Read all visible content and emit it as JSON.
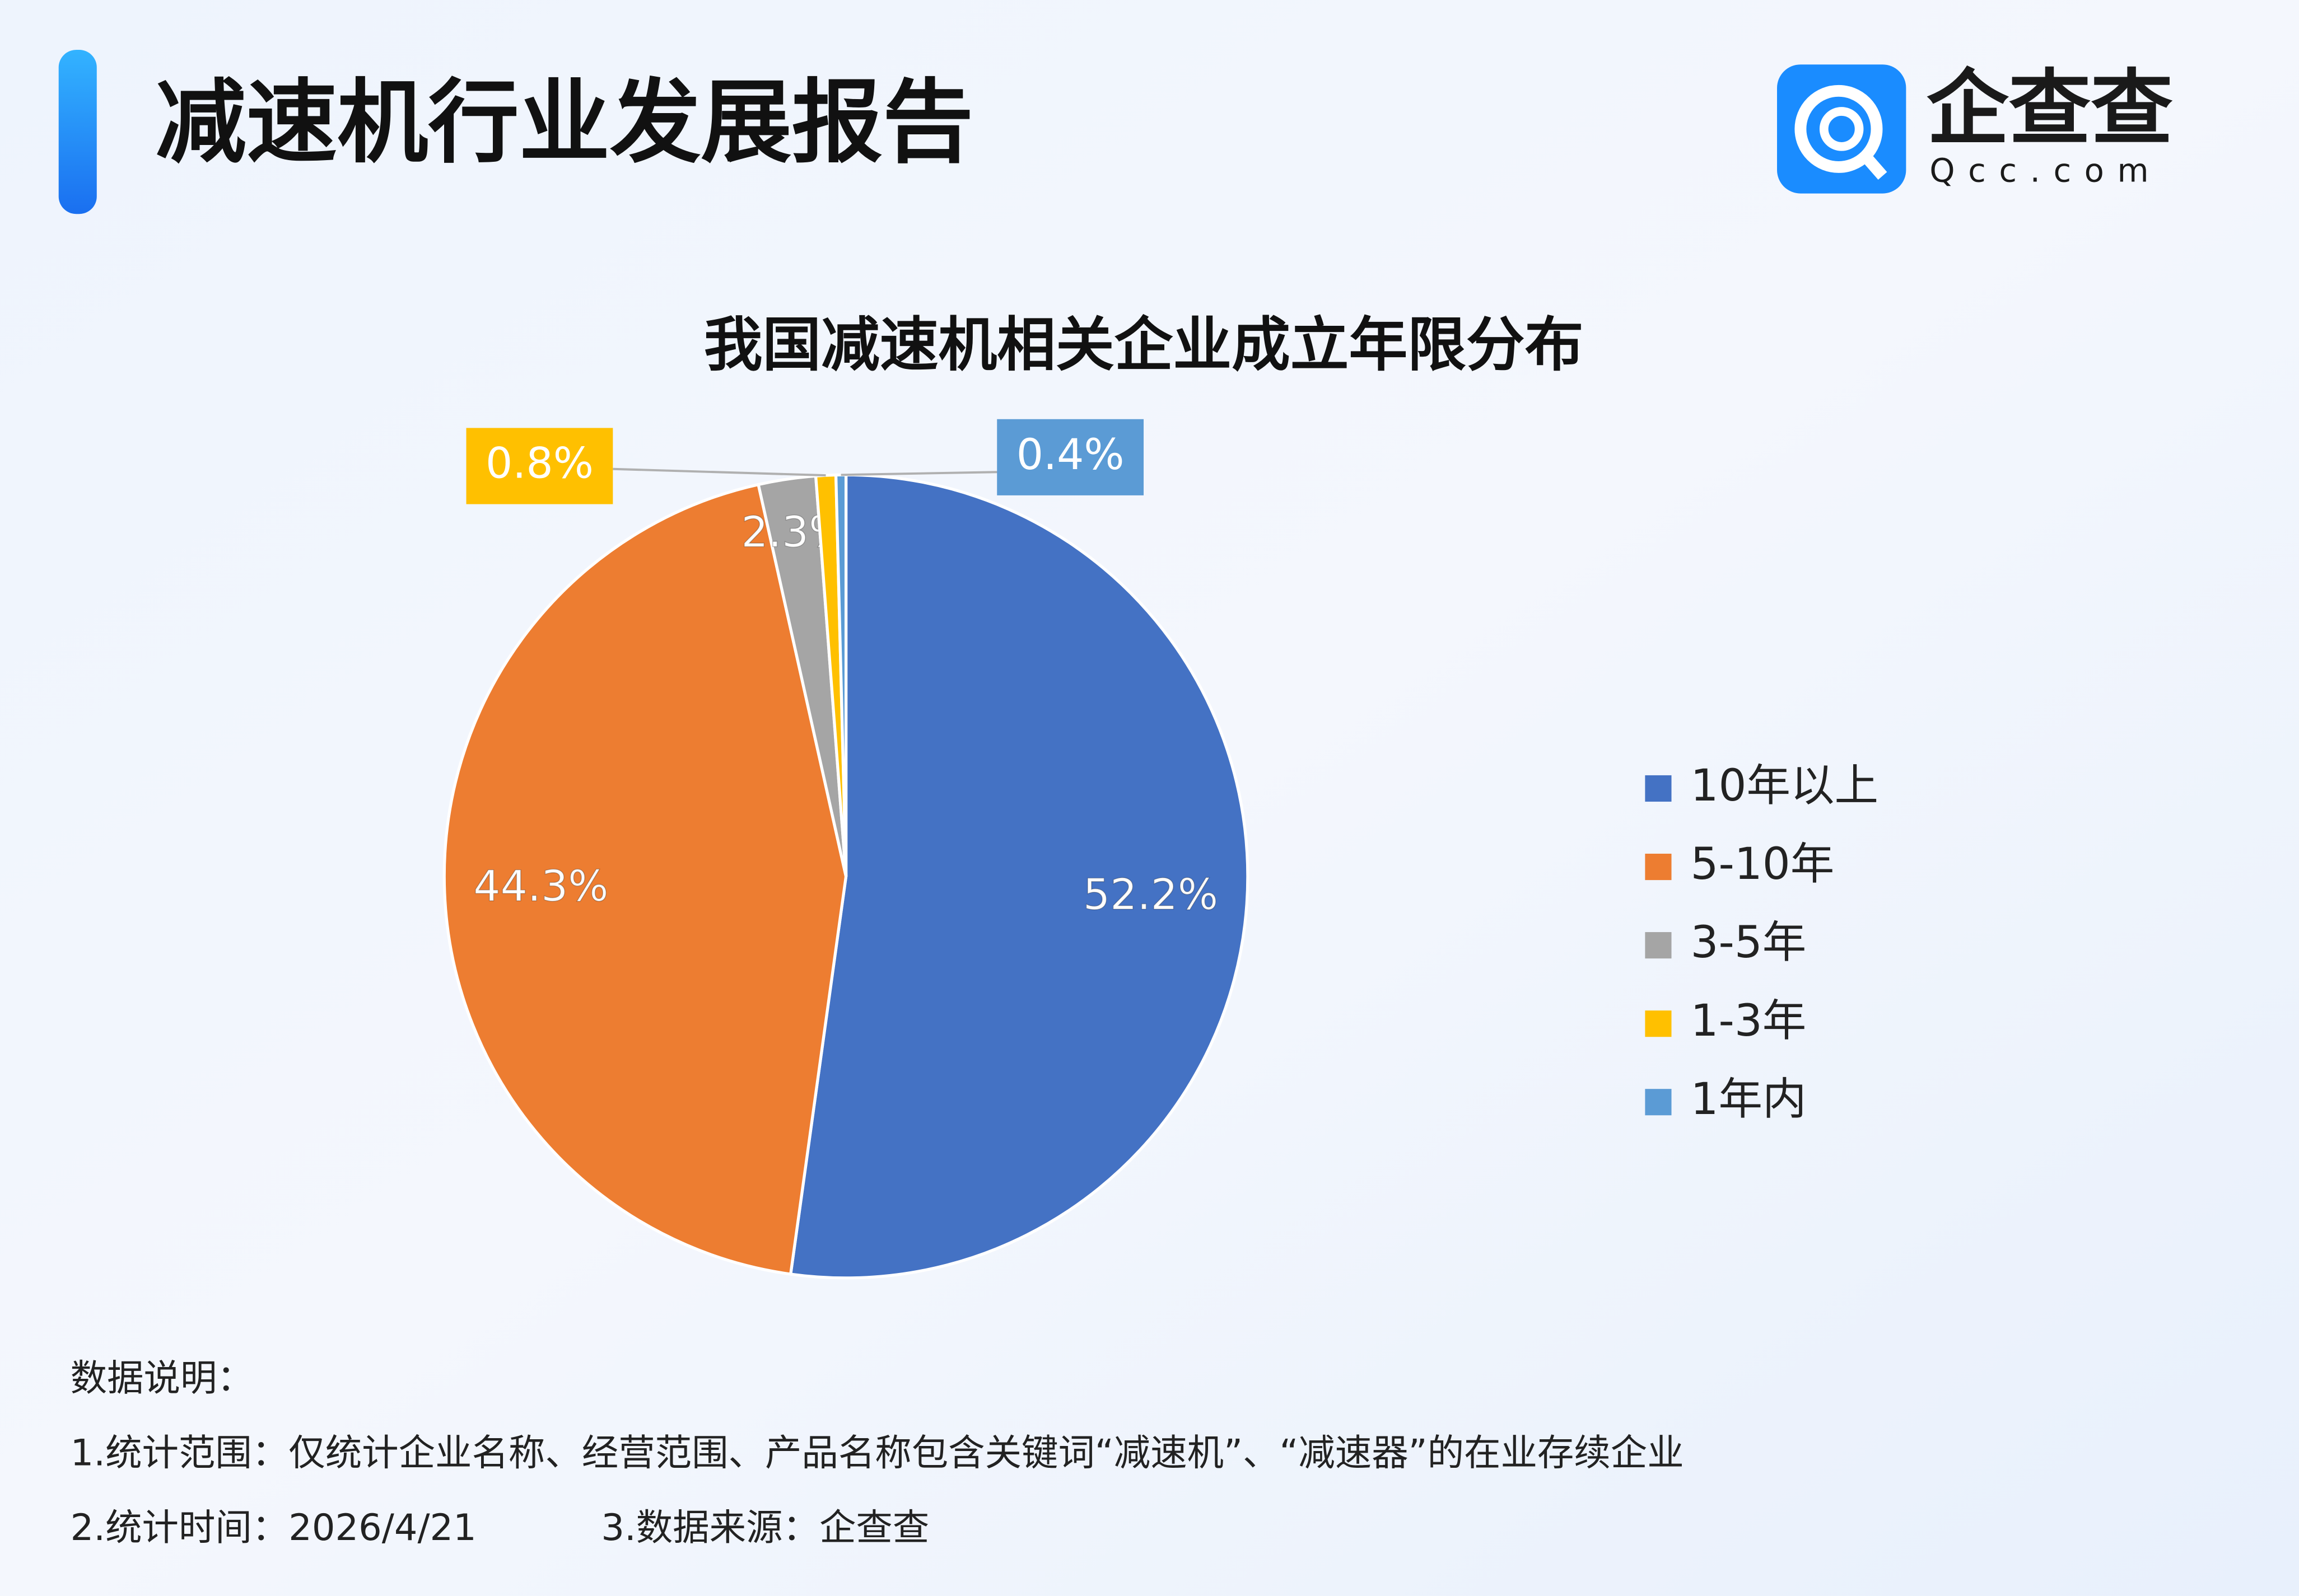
{
  "header": {
    "title": "减速机行业发展报告"
  },
  "logo": {
    "name": "企查查",
    "domain": "Qcc.com"
  },
  "chart_data": {
    "type": "pie",
    "title": "我国减速机相关企业成立年限分布",
    "categories": [
      "10年以上",
      "5-10年",
      "3-5年",
      "1-3年",
      "1年内"
    ],
    "values": [
      52.2,
      44.3,
      2.3,
      0.8,
      0.4
    ],
    "value_labels": [
      "52.2%",
      "44.3%",
      "2.3%",
      "0.8%",
      "0.4%"
    ],
    "colors": [
      "#4472c4",
      "#ed7d31",
      "#a5a5a5",
      "#ffc000",
      "#5b9bd5"
    ],
    "legend": "right"
  },
  "notes": {
    "heading": "数据说明：",
    "lines": [
      "1.统计范围：仅统计企业名称、经营范围、产品名称包含关键词“减速机”、“减速器”的在业存续企业",
      "2.统计时间：2026/4/21",
      "3.数据来源：企查查"
    ]
  }
}
